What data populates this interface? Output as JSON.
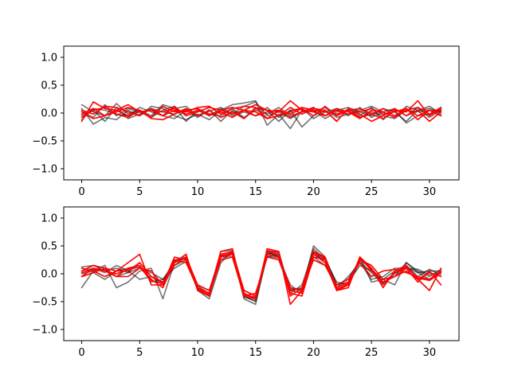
{
  "chart_data": [
    {
      "type": "line",
      "title": "",
      "xlabel": "",
      "ylabel": "",
      "xlim": [
        -1.55,
        32.55
      ],
      "ylim": [
        -1.2,
        1.2
      ],
      "xticks": [
        0,
        5,
        10,
        15,
        20,
        25,
        30
      ],
      "xtick_labels": [
        "0",
        "5",
        "10",
        "15",
        "20",
        "25",
        "30"
      ],
      "yticks": [
        -1.0,
        -0.5,
        0.0,
        0.5,
        1.0
      ],
      "ytick_labels": [
        "−1.0",
        "−0.5",
        "0.0",
        "0.5",
        "1.0"
      ],
      "grid": false,
      "x": [
        0,
        1,
        2,
        3,
        4,
        5,
        6,
        7,
        8,
        9,
        10,
        11,
        12,
        13,
        14,
        15,
        16,
        17,
        18,
        19,
        20,
        21,
        22,
        23,
        24,
        25,
        26,
        27,
        28,
        29,
        30,
        31
      ],
      "series": [
        {
          "color": "#000000",
          "opacity": 0.55,
          "values": [
            0.15,
            0.02,
            -0.05,
            0.17,
            -0.02,
            0.05,
            -0.05,
            0.15,
            0.08,
            0.12,
            -0.05,
            0.03,
            0.1,
            -0.02,
            0.12,
            0.2,
            -0.05,
            0.02,
            -0.1,
            0.02,
            0.1,
            -0.05,
            0.05,
            0.1,
            0.02,
            -0.05,
            0.08,
            0.02,
            -0.15,
            0.05,
            0.12,
            -0.02
          ]
        },
        {
          "color": "#000000",
          "opacity": 0.55,
          "values": [
            0.08,
            -0.2,
            -0.08,
            -0.12,
            0.05,
            -0.05,
            0.12,
            0.08,
            -0.05,
            -0.12,
            -0.02,
            -0.12,
            0.05,
            0.15,
            0.18,
            0.22,
            -0.22,
            -0.02,
            -0.28,
            0.05,
            0.02,
            0.1,
            -0.08,
            -0.02,
            0.05,
            0.12,
            0.02,
            -0.08,
            0.12,
            0.05,
            0.08,
            0.02
          ]
        },
        {
          "color": "#000000",
          "opacity": 0.55,
          "values": [
            -0.05,
            0.05,
            -0.15,
            0.1,
            -0.1,
            -0.02,
            0.08,
            0.02,
            -0.02,
            0.05,
            -0.08,
            0.06,
            -0.15,
            0.05,
            -0.1,
            0.1,
            0.05,
            -0.15,
            0.05,
            -0.25,
            -0.05,
            0.05,
            -0.15,
            0.08,
            -0.05,
            0.1,
            -0.12,
            0.05,
            -0.18,
            -0.05,
            -0.02,
            0.05
          ]
        },
        {
          "color": "#000000",
          "opacity": 0.55,
          "values": [
            0.02,
            -0.08,
            0.15,
            -0.05,
            0.08,
            0.02,
            -0.08,
            0.05,
            0.12,
            -0.15,
            0.05,
            -0.05,
            0.08,
            -0.05,
            0.02,
            -0.05,
            0.1,
            -0.08,
            0.05,
            0.08,
            -0.1,
            0.02,
            0.08,
            -0.05,
            0.1,
            -0.08,
            0.02,
            0.08,
            -0.05,
            0.1,
            -0.08,
            0.05
          ]
        },
        {
          "color": "#000000",
          "opacity": 0.55,
          "values": [
            -0.12,
            0.08,
            0.05,
            -0.02,
            -0.05,
            0.1,
            0.02,
            -0.05,
            -0.1,
            0.05,
            0.08,
            -0.02,
            -0.05,
            0.08,
            -0.08,
            0.05,
            -0.02,
            0.1,
            -0.05,
            0.02,
            0.05,
            -0.1,
            0.02,
            0.05,
            -0.08,
            0.02,
            -0.05,
            -0.1,
            0.05,
            0.02,
            0.05,
            -0.05
          ]
        },
        {
          "color": "#ff0000",
          "opacity": 1,
          "values": [
            -0.15,
            0.2,
            0.08,
            0.05,
            0.15,
            0.02,
            0.05,
            -0.05,
            0.05,
            0.02,
            0.1,
            0.12,
            -0.02,
            0.08,
            0.12,
            0.1,
            -0.1,
            -0.05,
            0.02,
            0.1,
            0.05,
            0.02,
            -0.02,
            0.05,
            0.08,
            -0.02,
            -0.1,
            0.05,
            0.02,
            0.22,
            -0.05,
            0.08
          ]
        },
        {
          "color": "#ff0000",
          "opacity": 1,
          "values": [
            0.05,
            -0.02,
            0.12,
            0.1,
            0.02,
            -0.05,
            0.08,
            -0.05,
            0.12,
            -0.05,
            0.02,
            0.1,
            0.05,
            -0.02,
            0.05,
            0.15,
            0.05,
            0.02,
            0.22,
            0.05,
            0.02,
            -0.05,
            0.08,
            0.02,
            -0.1,
            0.05,
            0.02,
            -0.08,
            0.05,
            0.1,
            -0.02,
            0.1
          ]
        },
        {
          "color": "#ff0000",
          "opacity": 1,
          "values": [
            -0.08,
            0.05,
            0.1,
            -0.02,
            -0.08,
            0.05,
            -0.08,
            0.12,
            0.02,
            0.05,
            0.08,
            -0.05,
            0.05,
            0.1,
            0.05,
            0.02,
            -0.1,
            0.05,
            -0.02,
            0.08,
            -0.05,
            0.12,
            -0.05,
            0.05,
            -0.08,
            -0.02,
            0.08,
            -0.05,
            0.08,
            -0.12,
            0.05,
            -0.05
          ]
        },
        {
          "color": "#ff0000",
          "opacity": 1,
          "values": [
            0.02,
            -0.1,
            -0.05,
            0.02,
            0.1,
            0.05,
            -0.1,
            -0.12,
            -0.02,
            0.08,
            -0.05,
            0.05,
            -0.08,
            0.02,
            -0.1,
            0.08,
            0.05,
            -0.05,
            0.1,
            -0.02,
            0.08,
            0.05,
            -0.15,
            0.08,
            -0.02,
            -0.15,
            -0.05,
            0.08,
            -0.05,
            0.05,
            -0.15,
            0.02
          ]
        },
        {
          "color": "#ff0000",
          "opacity": 1,
          "values": [
            -0.02,
            0.08,
            -0.05,
            0.05,
            -0.05,
            0.02,
            0.05,
            0.02,
            0.08,
            -0.02,
            0.05,
            -0.02,
            0.02,
            -0.08,
            0.05,
            -0.05,
            0.02,
            0.05,
            -0.08,
            0.02,
            0.1,
            -0.05,
            0.05,
            -0.02,
            0.02,
            0.08,
            -0.02,
            0.02,
            0.08,
            -0.05,
            0.05,
            0.02
          ]
        }
      ]
    },
    {
      "type": "line",
      "title": "",
      "xlabel": "",
      "ylabel": "",
      "xlim": [
        -1.55,
        32.55
      ],
      "ylim": [
        -1.2,
        1.2
      ],
      "xticks": [
        0,
        5,
        10,
        15,
        20,
        25,
        30
      ],
      "xtick_labels": [
        "0",
        "5",
        "10",
        "15",
        "20",
        "25",
        "30"
      ],
      "yticks": [
        -1.0,
        -0.5,
        0.0,
        0.5,
        1.0
      ],
      "ytick_labels": [
        "−1.0",
        "−0.5",
        "0.0",
        "0.5",
        "1.0"
      ],
      "grid": false,
      "x": [
        0,
        1,
        2,
        3,
        4,
        5,
        6,
        7,
        8,
        9,
        10,
        11,
        12,
        13,
        14,
        15,
        16,
        17,
        18,
        19,
        20,
        21,
        22,
        23,
        24,
        25,
        26,
        27,
        28,
        29,
        30,
        31
      ],
      "series": [
        {
          "color": "#000000",
          "opacity": 0.55,
          "values": [
            0.12,
            0.15,
            0.05,
            0.1,
            0.02,
            0.2,
            -0.05,
            -0.15,
            0.25,
            0.3,
            -0.25,
            -0.4,
            0.3,
            0.35,
            -0.4,
            -0.5,
            0.4,
            0.3,
            -0.25,
            -0.3,
            0.5,
            0.3,
            -0.2,
            -0.1,
            0.25,
            0.1,
            -0.15,
            -0.05,
            0.2,
            0.05,
            -0.05,
            0.08
          ]
        },
        {
          "color": "#000000",
          "opacity": 0.55,
          "values": [
            -0.25,
            0.05,
            0.15,
            -0.25,
            -0.15,
            0.05,
            0.1,
            -0.45,
            0.2,
            0.35,
            -0.3,
            -0.45,
            0.2,
            0.4,
            -0.45,
            -0.55,
            0.35,
            0.4,
            -0.35,
            -0.2,
            0.4,
            0.2,
            -0.3,
            -0.25,
            0.3,
            -0.15,
            -0.1,
            -0.2,
            0.2,
            0.02,
            -0.1,
            0.05
          ]
        },
        {
          "color": "#000000",
          "opacity": 0.55,
          "values": [
            0.05,
            0.1,
            0.02,
            0.15,
            0.05,
            -0.1,
            -0.05,
            -0.2,
            0.15,
            0.25,
            -0.2,
            -0.3,
            0.35,
            0.3,
            -0.3,
            -0.4,
            0.3,
            0.35,
            -0.3,
            -0.25,
            0.35,
            0.25,
            -0.2,
            -0.15,
            0.15,
            0.05,
            -0.1,
            0.05,
            0.15,
            -0.05,
            0.08,
            -0.02
          ]
        },
        {
          "color": "#000000",
          "opacity": 0.55,
          "values": [
            -0.05,
            0.02,
            -0.1,
            0.05,
            0.1,
            0.15,
            -0.15,
            -0.1,
            0.2,
            0.28,
            -0.22,
            -0.35,
            0.25,
            0.38,
            -0.35,
            -0.45,
            0.32,
            0.28,
            -0.2,
            -0.35,
            0.3,
            0.15,
            -0.25,
            -0.05,
            0.2,
            -0.1,
            -0.05,
            0.1,
            0.1,
            0.08,
            -0.02,
            0.02
          ]
        },
        {
          "color": "#000000",
          "opacity": 0.55,
          "values": [
            0.0,
            0.05,
            0.08,
            -0.05,
            0.02,
            0.1,
            0.02,
            -0.1,
            0.1,
            0.22,
            -0.28,
            -0.38,
            0.4,
            0.42,
            -0.42,
            -0.48,
            0.38,
            0.32,
            -0.28,
            -0.28,
            0.45,
            0.25,
            -0.15,
            -0.2,
            0.22,
            0.02,
            -0.2,
            0.0,
            0.12,
            0.02,
            0.05,
            0.05
          ]
        },
        {
          "color": "#ff0000",
          "opacity": 1,
          "values": [
            0.05,
            0.15,
            0.1,
            0.05,
            0.2,
            0.35,
            -0.2,
            -0.2,
            0.3,
            0.25,
            -0.25,
            -0.35,
            0.4,
            0.45,
            -0.4,
            -0.45,
            0.45,
            0.4,
            -0.55,
            -0.3,
            0.4,
            0.3,
            -0.3,
            -0.25,
            0.3,
            0.1,
            -0.25,
            0.05,
            0.15,
            -0.1,
            -0.3,
            0.1
          ]
        },
        {
          "color": "#ff0000",
          "opacity": 1,
          "values": [
            -0.05,
            0.1,
            0.05,
            -0.05,
            0.1,
            0.15,
            -0.1,
            -0.25,
            0.2,
            0.35,
            -0.3,
            -0.4,
            0.35,
            0.4,
            -0.3,
            -0.4,
            0.4,
            0.35,
            -0.35,
            -0.4,
            0.3,
            0.25,
            -0.25,
            -0.15,
            0.25,
            0.15,
            -0.1,
            -0.05,
            0.1,
            -0.15,
            0.05,
            -0.2
          ]
        },
        {
          "color": "#ff0000",
          "opacity": 1,
          "values": [
            0.1,
            0.05,
            -0.05,
            0.05,
            0.05,
            0.2,
            -0.05,
            -0.15,
            0.15,
            0.3,
            -0.2,
            -0.3,
            0.3,
            0.35,
            -0.35,
            -0.45,
            0.35,
            0.3,
            -0.25,
            -0.3,
            0.25,
            0.15,
            -0.2,
            -0.1,
            0.2,
            -0.05,
            0.05,
            0.08,
            0.02,
            -0.05,
            -0.1,
            0.05
          ]
        },
        {
          "color": "#ff0000",
          "opacity": 1,
          "values": [
            -0.05,
            0.02,
            0.1,
            -0.05,
            -0.05,
            0.1,
            0.05,
            -0.2,
            0.25,
            0.2,
            -0.25,
            -0.35,
            0.25,
            0.3,
            -0.4,
            -0.35,
            0.3,
            0.25,
            -0.3,
            -0.35,
            0.35,
            0.2,
            -0.3,
            -0.2,
            0.3,
            0.05,
            -0.15,
            -0.05,
            0.05,
            -0.1,
            0.02,
            -0.05
          ]
        },
        {
          "color": "#ff0000",
          "opacity": 1,
          "values": [
            0.02,
            0.08,
            0.05,
            0.0,
            0.08,
            0.12,
            -0.12,
            -0.18,
            0.22,
            0.28,
            -0.28,
            -0.38,
            0.32,
            0.38,
            -0.38,
            -0.42,
            0.42,
            0.38,
            -0.4,
            -0.25,
            0.38,
            0.28,
            -0.28,
            -0.18,
            0.28,
            0.08,
            -0.18,
            0.02,
            0.12,
            -0.08,
            -0.12,
            0.02
          ]
        }
      ]
    }
  ]
}
